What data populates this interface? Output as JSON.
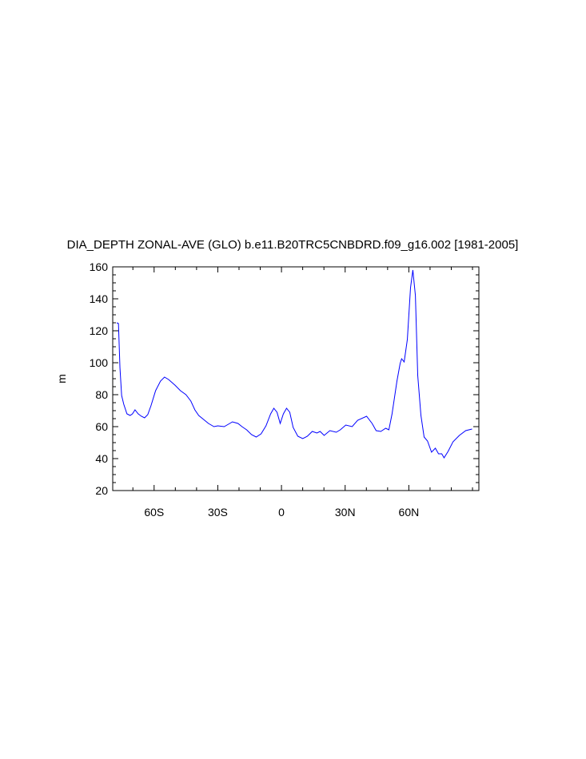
{
  "chart_data": {
    "type": "line",
    "title": "DIA_DEPTH ZONAL-AVE (GLO) b.e11.B20TRC5CNBDRD.f09_g16.002 [1981-2005]",
    "ylabel": "m",
    "x": [
      -77.6,
      -76.8,
      -76.1,
      -75.3,
      -74.3,
      -72.8,
      -71.3,
      -70.2,
      -69.0,
      -67.5,
      -66.0,
      -64.5,
      -63.0,
      -61.5,
      -59.3,
      -57.0,
      -55.1,
      -53.2,
      -50.2,
      -47.6,
      -45.0,
      -42.7,
      -40.8,
      -39.0,
      -36.7,
      -34.4,
      -31.8,
      -30.0,
      -27.0,
      -25.0,
      -23.1,
      -20.5,
      -18.6,
      -16.4,
      -14.1,
      -11.9,
      -9.6,
      -7.3,
      -5.1,
      -3.6,
      -2.1,
      -0.6,
      0.9,
      2.4,
      3.9,
      5.5,
      7.7,
      10.0,
      12.2,
      14.5,
      16.7,
      18.2,
      20.1,
      22.8,
      25.8,
      27.7,
      30.3,
      33.3,
      35.9,
      40.1,
      42.7,
      44.6,
      46.8,
      49.1,
      50.6,
      52.1,
      54.4,
      55.9,
      56.6,
      57.8,
      59.3,
      60.8,
      61.9,
      63.1,
      64.2,
      65.7,
      67.2,
      68.8,
      70.7,
      72.5,
      74.0,
      75.5,
      76.6,
      78.5,
      80.8,
      83.8,
      86.8,
      89.8
    ],
    "series": [
      {
        "name": "DIA_DEPTH",
        "color": "#0000ff",
        "values": [
          125,
          124.5,
          97,
          79.5,
          74,
          68,
          67,
          68,
          70.5,
          68,
          66.5,
          65.5,
          67.5,
          73,
          82.5,
          88.5,
          91,
          89.5,
          86,
          82.5,
          80,
          76,
          70.5,
          67,
          64.5,
          62,
          60,
          60.5,
          60,
          61.5,
          63,
          62,
          60,
          58,
          55,
          53.5,
          55.5,
          60.5,
          68,
          71.5,
          69,
          62,
          68,
          71.5,
          69,
          59.5,
          54,
          52.5,
          54,
          57,
          56,
          57,
          54.5,
          57.5,
          56.5,
          58,
          61,
          60,
          64,
          66.5,
          62,
          57.5,
          57,
          59,
          58,
          68,
          88.5,
          99.5,
          102.5,
          100.5,
          114.5,
          147,
          158,
          142,
          92,
          67,
          53.5,
          51,
          44,
          46.5,
          43,
          43,
          40.5,
          44.5,
          50.5,
          54.5,
          57.5,
          58.5
        ]
      }
    ],
    "xlim": [
      -79.5,
      93
    ],
    "xticks": [
      {
        "value": -60,
        "label": "60S"
      },
      {
        "value": -30,
        "label": "30S"
      },
      0,
      {
        "value": 30,
        "label": "30N"
      },
      {
        "value": 60,
        "label": "60N"
      }
    ],
    "xminorticks": [
      -70,
      -50,
      -40,
      -20,
      -10,
      10,
      20,
      40,
      50,
      70,
      80,
      90
    ],
    "ylim": [
      20,
      160
    ],
    "yticks": [
      20,
      40,
      60,
      80,
      100,
      120,
      140,
      160
    ],
    "yminorticks": [
      25,
      30,
      35,
      45,
      50,
      55,
      65,
      70,
      75,
      85,
      90,
      95,
      105,
      110,
      115,
      125,
      130,
      135,
      145,
      150,
      155
    ]
  }
}
